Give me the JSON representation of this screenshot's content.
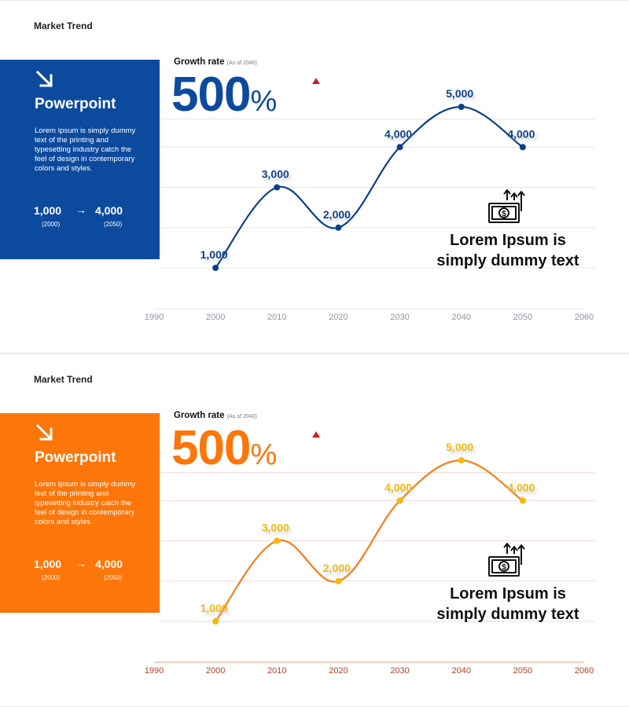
{
  "slides": [
    {
      "theme": {
        "panel_color": "#0c4a9e",
        "line_color": "#0c3f8c",
        "point_color": "#0c3f8c",
        "label_color": "#0c3f8c",
        "grid_color": "#e3e6ec",
        "axis_color": "#e3e6ec",
        "tick_color": "#8d96a3",
        "big_value_color": "#0c4a9e",
        "marker_color": "#d11f1f"
      },
      "header": {
        "label": "Market Trend"
      },
      "panel": {
        "title": "Powerpoint",
        "description": "Lorem Ipsum is simply dummy text of the printing and typesetting industry catch the feel of design in contemporary colors and styles.",
        "range_from": "1,000",
        "range_to": "4,000",
        "range_from_year": "(2000)",
        "range_to_year": "(2050)",
        "arrow_icon": "arrow-down-right-icon"
      },
      "growth": {
        "label": "Growth rate",
        "note": "(As of 2040)",
        "value": "500",
        "unit": "%"
      },
      "callout": {
        "line1": "Lorem Ipsum is",
        "line2": "simply dummy text",
        "icon": "money-growth-icon"
      },
      "chart_data": {
        "type": "line",
        "title": "",
        "x": [
          2000,
          2010,
          2020,
          2030,
          2040,
          2050
        ],
        "values": [
          1000,
          3000,
          2000,
          4000,
          5000,
          4000
        ],
        "labels": [
          "1,000",
          "3,000",
          "2,000",
          "4,000",
          "5,000",
          "4,000"
        ],
        "x_ticks": [
          "1990",
          "2000",
          "2010",
          "2020",
          "2030",
          "2040",
          "2050",
          "2060"
        ],
        "xlim": [
          1990,
          2060
        ],
        "ylim": [
          1000,
          5000
        ],
        "grid": true,
        "xlabel": "",
        "ylabel": ""
      }
    },
    {
      "theme": {
        "panel_color": "#fd7609",
        "line_color": "#fb7d15",
        "point_color": "#f6b80a",
        "label_color": "#f6b80a",
        "grid_color": "#f8d8d5",
        "axis_color": "#e8a07c",
        "tick_color": "#b5412a",
        "big_value_color": "#fd7609",
        "marker_color": "#d11f1f"
      },
      "header": {
        "label": "Market Trend"
      },
      "panel": {
        "title": "Powerpoint",
        "description": "Lorem Ipsum is simply dummy text of the printing and typesetting industry catch the feel of design in contemporary colors and styles.",
        "range_from": "1,000",
        "range_to": "4,000",
        "range_from_year": "(2000)",
        "range_to_year": "(2050)",
        "arrow_icon": "arrow-down-right-icon"
      },
      "growth": {
        "label": "Growth rate",
        "note": "(As of 2040)",
        "value": "500",
        "unit": "%"
      },
      "callout": {
        "line1": "Lorem Ipsum is",
        "line2": "simply dummy text",
        "icon": "money-growth-icon"
      },
      "chart_data": {
        "type": "line",
        "title": "",
        "x": [
          2000,
          2010,
          2020,
          2030,
          2040,
          2050
        ],
        "values": [
          1000,
          3000,
          2000,
          4000,
          5000,
          4000
        ],
        "labels": [
          "1,000",
          "3,000",
          "2,000",
          "4,000",
          "5,000",
          "4,000"
        ],
        "x_ticks": [
          "1990",
          "2000",
          "2010",
          "2020",
          "2030",
          "2040",
          "2050",
          "2060"
        ],
        "xlim": [
          1990,
          2060
        ],
        "ylim": [
          1000,
          5000
        ],
        "grid": true,
        "xlabel": "",
        "ylabel": ""
      }
    }
  ]
}
